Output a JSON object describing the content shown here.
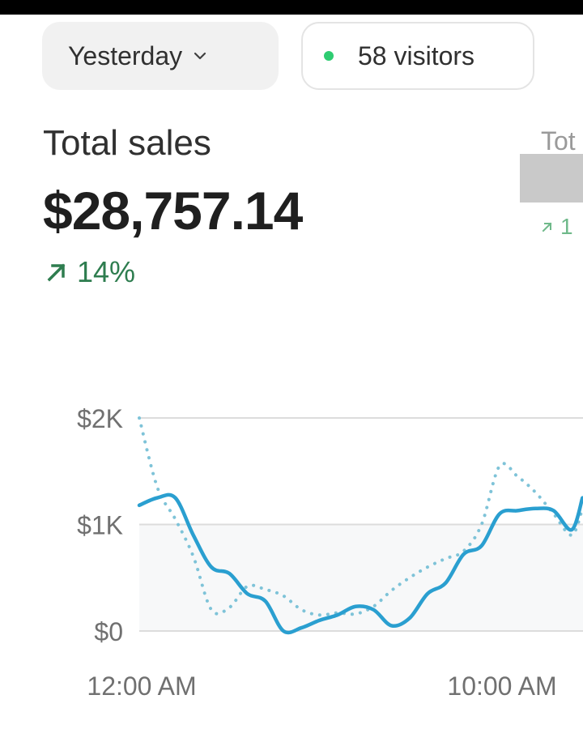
{
  "filters": {
    "date_range": "Yesterday",
    "visitors_label": "58 visitors",
    "live_dot_color": "#2ecc71"
  },
  "metric": {
    "title": "Total sales",
    "value": "$28,757.14",
    "change": "14%",
    "change_direction": "up",
    "change_color": "#2e7d4f"
  },
  "second_card": {
    "title_partial": "Tot",
    "change_partial": "1",
    "value_redacted": true
  },
  "chart_data": {
    "type": "line",
    "title": "",
    "xlabel": "",
    "ylabel": "",
    "y_ticks": [
      "$2K",
      "$1K",
      "$0"
    ],
    "y_tick_values": [
      2000,
      1000,
      0
    ],
    "x_ticks": [
      "12:00 AM",
      "10:00 AM"
    ],
    "x_tick_hours": [
      0,
      10
    ],
    "ylim": [
      0,
      2000
    ],
    "grid": true,
    "series": [
      {
        "style": "solid",
        "color": "#2a9fd0",
        "hours": [
          0,
          0.5,
          1,
          1.5,
          2,
          2.5,
          3,
          3.5,
          4,
          4.5,
          5,
          5.5,
          6,
          6.5,
          7,
          7.5,
          8,
          8.5,
          9,
          9.5,
          10,
          10.5,
          11,
          11.5,
          12,
          12.3
        ],
        "values": [
          1180,
          1250,
          1250,
          900,
          600,
          540,
          350,
          280,
          0,
          30,
          100,
          150,
          230,
          200,
          50,
          120,
          350,
          450,
          720,
          800,
          1100,
          1130,
          1150,
          1130,
          950,
          1250
        ]
      },
      {
        "style": "dotted",
        "color": "#7ec3d8",
        "hours": [
          0,
          0.5,
          1,
          1.5,
          2,
          2.5,
          3,
          3.5,
          4,
          4.5,
          5,
          5.5,
          6,
          6.5,
          7,
          7.5,
          8,
          8.5,
          9,
          9.5,
          10,
          10.5,
          11,
          11.5,
          12,
          12.3
        ],
        "values": [
          2000,
          1350,
          1050,
          700,
          200,
          220,
          420,
          390,
          330,
          200,
          150,
          170,
          160,
          230,
          380,
          500,
          600,
          680,
          750,
          1000,
          1550,
          1450,
          1300,
          1100,
          900,
          1150
        ]
      }
    ]
  }
}
